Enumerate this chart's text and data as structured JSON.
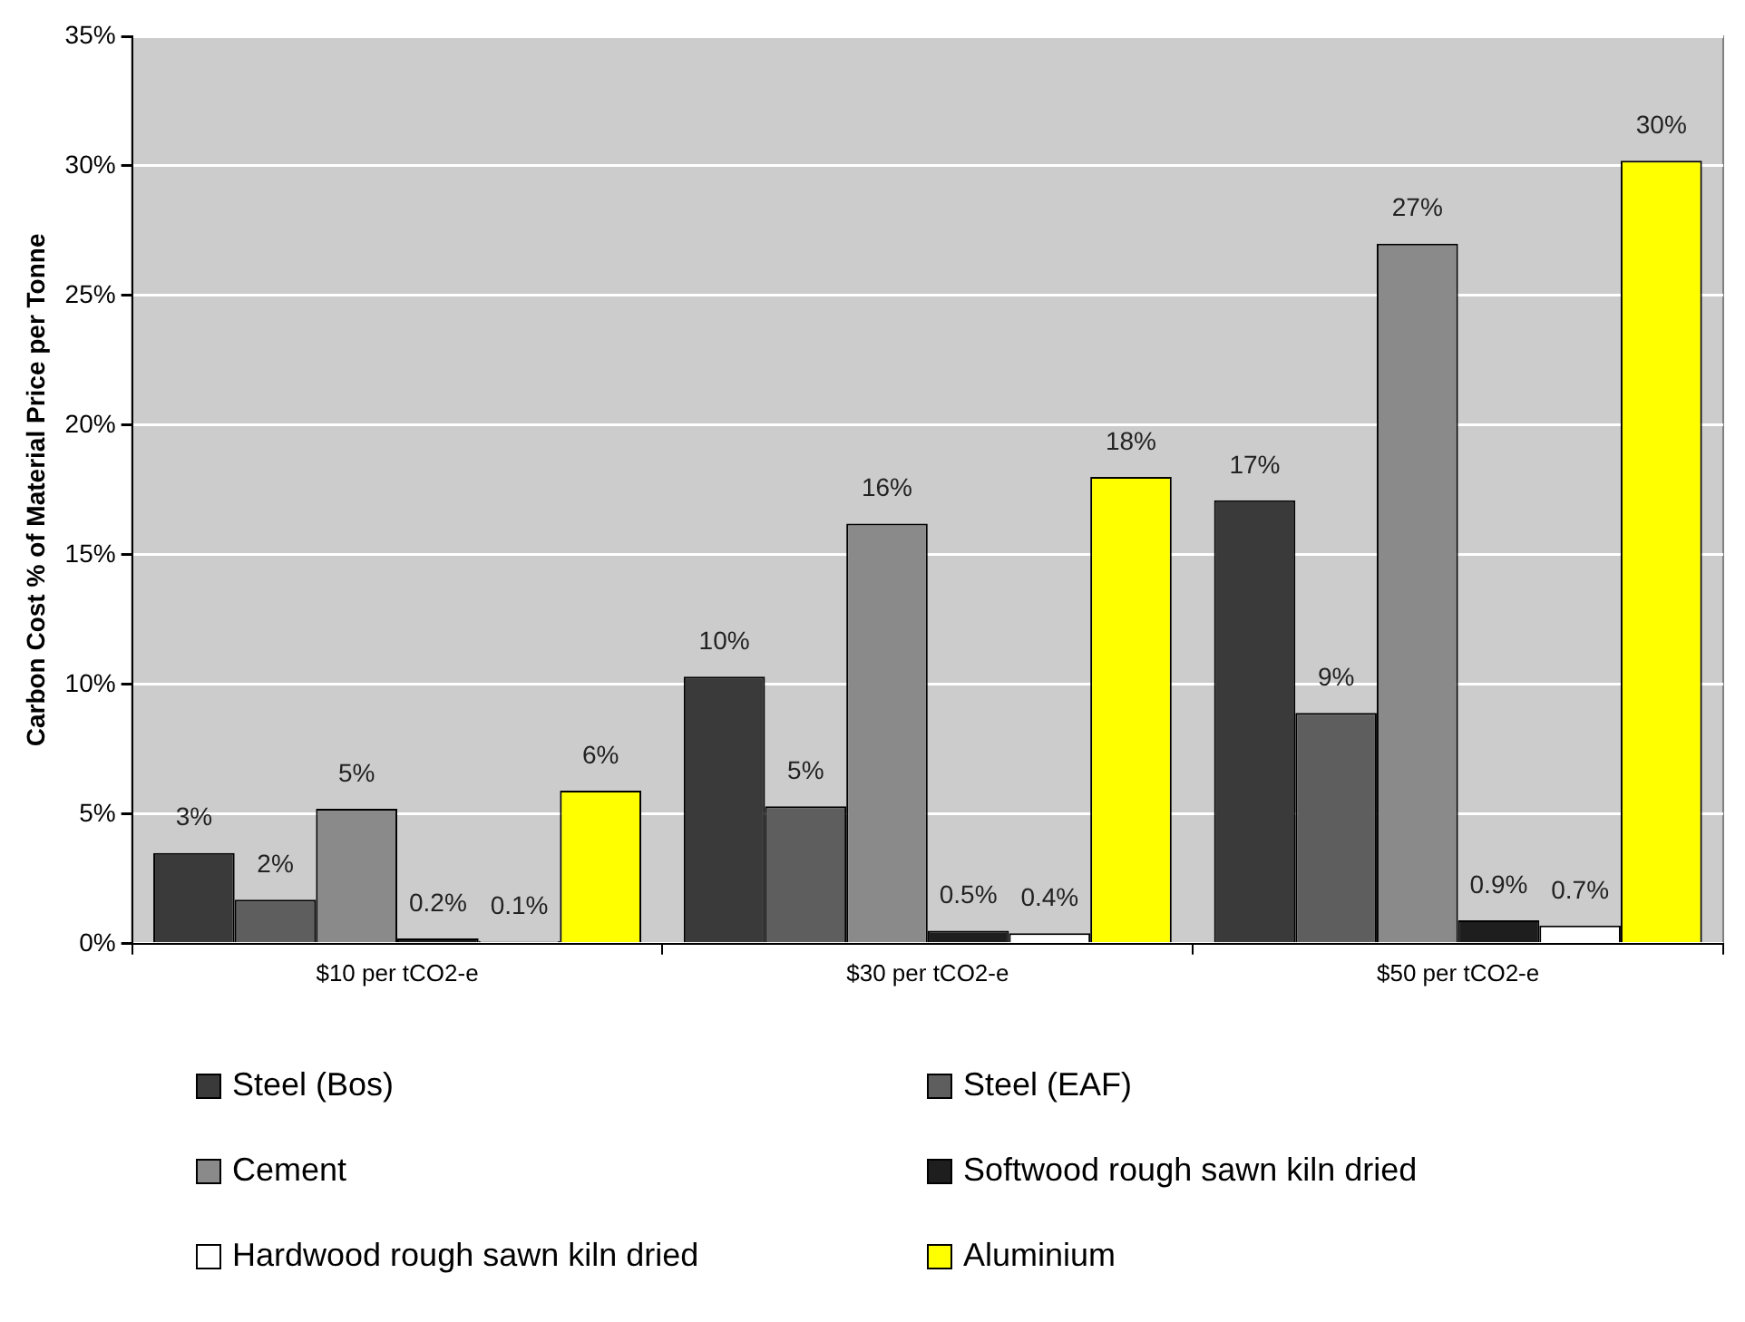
{
  "chart_data": {
    "type": "bar",
    "ylabel": "Carbon Cost % of Material Price per Tonne",
    "categories": [
      "$10 per tCO2-e",
      "$30 per tCO2-e",
      "$50 per tCO2-e"
    ],
    "series": [
      {
        "name": "Steel (Bos)",
        "color": "#3a3a3a",
        "values": [
          3.5,
          10.3,
          17.1
        ],
        "value_labels": [
          "3%",
          "10%",
          "17%"
        ]
      },
      {
        "name": "Steel (EAF)",
        "color": "#5e5e5e",
        "values": [
          1.7,
          5.3,
          8.9
        ],
        "value_labels": [
          "2%",
          "5%",
          "9%"
        ]
      },
      {
        "name": "Cement",
        "color": "#8a8a8a",
        "values": [
          5.2,
          16.2,
          27.0
        ],
        "value_labels": [
          "5%",
          "16%",
          "27%"
        ]
      },
      {
        "name": "Softwood rough sawn kiln dried",
        "color": "#1e1e1e",
        "values": [
          0.2,
          0.5,
          0.9
        ],
        "value_labels": [
          "0.2%",
          "0.5%",
          "0.9%"
        ]
      },
      {
        "name": "Hardwood rough sawn kiln dried",
        "color": "#ffffff",
        "values": [
          0.1,
          0.4,
          0.7
        ],
        "value_labels": [
          "0.1%",
          "0.4%",
          "0.7%"
        ]
      },
      {
        "name": "Aluminium",
        "color": "#ffff00",
        "values": [
          5.9,
          18.0,
          30.2
        ],
        "value_labels": [
          "6%",
          "18%",
          "30%"
        ]
      }
    ],
    "ylim": [
      0,
      35
    ],
    "yticks": [
      {
        "value": 0,
        "label": "0%"
      },
      {
        "value": 5,
        "label": "5%"
      },
      {
        "value": 10,
        "label": "10%"
      },
      {
        "value": 15,
        "label": "15%"
      },
      {
        "value": 20,
        "label": "20%"
      },
      {
        "value": 25,
        "label": "25%"
      },
      {
        "value": 30,
        "label": "30%"
      },
      {
        "value": 35,
        "label": "35%"
      }
    ],
    "grid": "y",
    "legend": "bottom"
  }
}
